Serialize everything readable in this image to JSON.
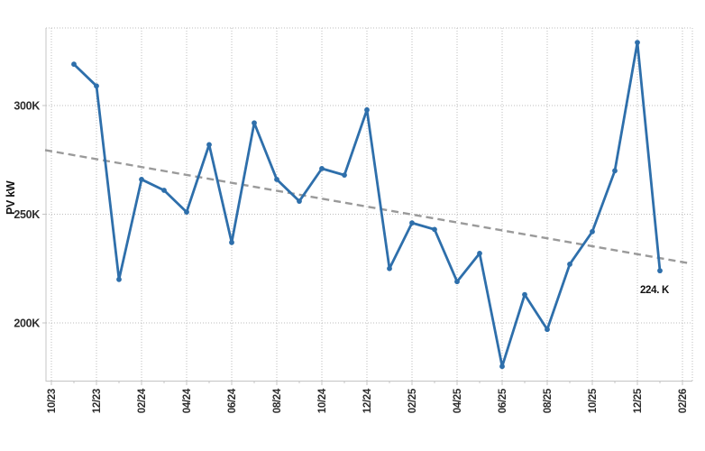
{
  "chart_data": {
    "type": "line",
    "title": "",
    "ylabel": "PV kW",
    "xlabel": "",
    "grid": "dotted",
    "legend": "none",
    "axis": {
      "x_start_month": "10/23",
      "x_end_month": "02/26",
      "x_major_tick_labels": [
        "10/23",
        "12/23",
        "02/24",
        "04/24",
        "06/24",
        "08/24",
        "10/24",
        "12/24",
        "02/25",
        "04/25",
        "06/25",
        "08/25",
        "10/25",
        "12/25",
        "02/26"
      ],
      "y_tick_labels": [
        "200K",
        "250K",
        "300K"
      ],
      "y_ticks_k": [
        200,
        250,
        300
      ],
      "ylim_k": [
        173.4,
        335.7
      ]
    },
    "series": [
      {
        "name": "PV kW",
        "color": "#2e6fab",
        "marker": "circle",
        "points": [
          {
            "month": "11/23",
            "value_k": 319
          },
          {
            "month": "12/23",
            "value_k": 309
          },
          {
            "month": "01/24",
            "value_k": 220
          },
          {
            "month": "02/24",
            "value_k": 266
          },
          {
            "month": "03/24",
            "value_k": 261
          },
          {
            "month": "04/24",
            "value_k": 251
          },
          {
            "month": "05/24",
            "value_k": 282
          },
          {
            "month": "06/24",
            "value_k": 237
          },
          {
            "month": "07/24",
            "value_k": 292
          },
          {
            "month": "08/24",
            "value_k": 266
          },
          {
            "month": "09/24",
            "value_k": 256
          },
          {
            "month": "10/24",
            "value_k": 271
          },
          {
            "month": "11/24",
            "value_k": 268
          },
          {
            "month": "12/24",
            "value_k": 298
          },
          {
            "month": "01/25",
            "value_k": 225
          },
          {
            "month": "02/25",
            "value_k": 246
          },
          {
            "month": "03/25",
            "value_k": 243
          },
          {
            "month": "04/25",
            "value_k": 219
          },
          {
            "month": "05/25",
            "value_k": 232
          },
          {
            "month": "06/25",
            "value_k": 180
          },
          {
            "month": "07/25",
            "value_k": 213
          },
          {
            "month": "08/25",
            "value_k": 197
          },
          {
            "month": "09/25",
            "value_k": 227
          },
          {
            "month": "10/25",
            "value_k": 242
          },
          {
            "month": "11/25",
            "value_k": 270
          },
          {
            "month": "12/25",
            "value_k": 329
          },
          {
            "month": "01/26",
            "value_k": 224
          }
        ]
      }
    ],
    "trend_line": {
      "style": "dashed",
      "color": "#9a9a9a",
      "start_month": "10/23",
      "start_value_k": 279,
      "end_month": "02/26",
      "end_value_k": 228
    },
    "annotation": {
      "text": "224. K",
      "at_month": "01/26",
      "value_k": 224
    },
    "colors": {
      "series_line": "#2e6fab",
      "trend_line": "#9a9a9a",
      "gridline": "#bdbdbd",
      "axis_line": "#c4c4c4",
      "tick_text": "#2d2d2d",
      "background": "#ffffff"
    }
  }
}
